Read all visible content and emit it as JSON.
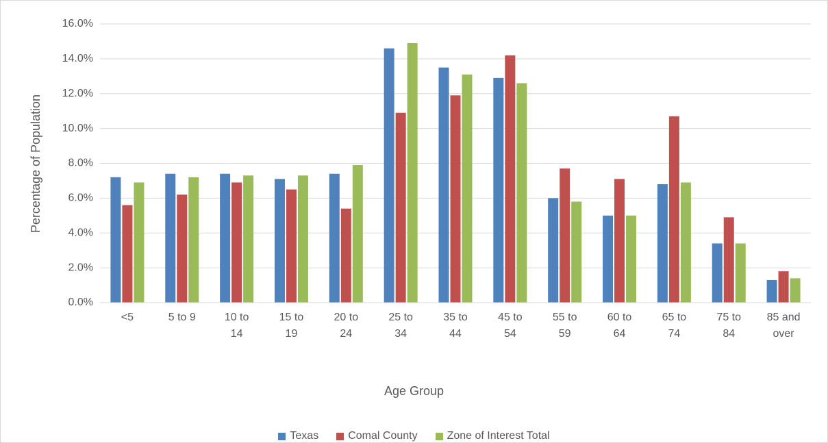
{
  "chart_data": {
    "type": "bar",
    "x_label": "Age Group",
    "y_label": "Percentage of Population",
    "categories": [
      "<5",
      "5 to 9",
      "10 to 14",
      "15 to 19",
      "20 to 24",
      "25 to 34",
      "35 to 44",
      "45 to 54",
      "55 to 59",
      "60 to 64",
      "65 to 74",
      "75 to 84",
      "85 and over"
    ],
    "series": [
      {
        "name": "Texas",
        "color": "#4f81bd",
        "values": [
          7.2,
          7.4,
          7.4,
          7.1,
          7.4,
          14.6,
          13.5,
          12.9,
          6.0,
          5.0,
          6.8,
          3.4,
          1.3
        ]
      },
      {
        "name": "Comal County",
        "color": "#c0504d",
        "values": [
          5.6,
          6.2,
          6.9,
          6.5,
          5.4,
          10.9,
          11.9,
          14.2,
          7.7,
          7.1,
          10.7,
          4.9,
          1.8
        ]
      },
      {
        "name": "Zone of Interest Total",
        "color": "#9bbb59",
        "values": [
          6.9,
          7.2,
          7.3,
          7.3,
          7.9,
          14.9,
          13.1,
          12.6,
          5.8,
          5.0,
          6.9,
          3.4,
          1.4
        ]
      }
    ],
    "ylim": [
      0,
      16
    ],
    "yticks": [
      {
        "value": 0,
        "label": "0.0%"
      },
      {
        "value": 2,
        "label": "2.0%"
      },
      {
        "value": 4,
        "label": "4.0%"
      },
      {
        "value": 6,
        "label": "6.0%"
      },
      {
        "value": 8,
        "label": "8.0%"
      },
      {
        "value": 10,
        "label": "10.0%"
      },
      {
        "value": 12,
        "label": "12.0%"
      },
      {
        "value": 14,
        "label": "14.0%"
      },
      {
        "value": 16,
        "label": "16.0%"
      }
    ],
    "grid": true,
    "legend": "bottom"
  }
}
